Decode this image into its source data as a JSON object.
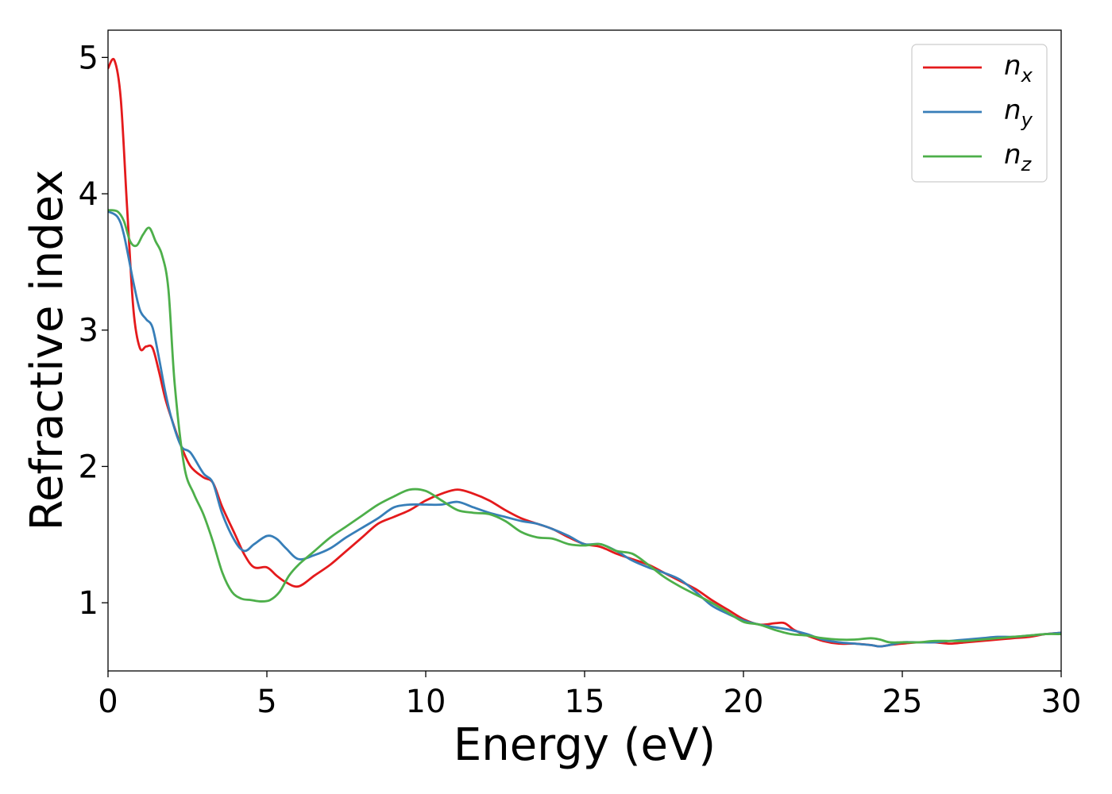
{
  "chart_data": {
    "type": "line",
    "title": "",
    "xlabel": "Energy (eV)",
    "ylabel": "Refractive index",
    "xlim": [
      0,
      30
    ],
    "ylim": [
      0.5,
      5.2
    ],
    "xticks": [
      0,
      5,
      10,
      15,
      20,
      25,
      30
    ],
    "yticks": [
      1,
      2,
      3,
      4,
      5
    ],
    "grid": false,
    "legend_position": "top-right",
    "series": [
      {
        "name": "n_x",
        "legend_base": "n",
        "legend_sub": "x",
        "color": "#e41a1c",
        "x": [
          0,
          0.2,
          0.4,
          0.6,
          0.8,
          1.0,
          1.2,
          1.4,
          1.6,
          1.8,
          2.0,
          2.3,
          2.6,
          3.0,
          3.3,
          3.6,
          4.0,
          4.3,
          4.6,
          5.0,
          5.3,
          5.6,
          6.0,
          6.5,
          7.0,
          7.5,
          8.0,
          8.5,
          9.0,
          9.5,
          10.0,
          10.5,
          11.0,
          11.5,
          12.0,
          12.5,
          13.0,
          13.5,
          14.0,
          14.5,
          15.0,
          15.5,
          16.0,
          16.5,
          17.0,
          17.5,
          18.0,
          18.5,
          19.0,
          19.5,
          20.0,
          20.5,
          21.0,
          21.3,
          21.6,
          22.0,
          22.5,
          23.0,
          23.5,
          24.0,
          24.3,
          24.6,
          25.0,
          25.5,
          26.0,
          26.5,
          27.0,
          27.5,
          28.0,
          28.5,
          29.0,
          29.5,
          30.0
        ],
        "y": [
          4.92,
          4.98,
          4.7,
          3.9,
          3.15,
          2.87,
          2.88,
          2.87,
          2.7,
          2.5,
          2.35,
          2.15,
          2.0,
          1.92,
          1.88,
          1.7,
          1.5,
          1.35,
          1.26,
          1.26,
          1.2,
          1.15,
          1.12,
          1.2,
          1.28,
          1.38,
          1.48,
          1.58,
          1.63,
          1.68,
          1.75,
          1.8,
          1.83,
          1.8,
          1.75,
          1.68,
          1.62,
          1.58,
          1.54,
          1.48,
          1.43,
          1.41,
          1.36,
          1.32,
          1.28,
          1.22,
          1.16,
          1.1,
          1.02,
          0.95,
          0.88,
          0.84,
          0.85,
          0.85,
          0.8,
          0.76,
          0.72,
          0.7,
          0.7,
          0.69,
          0.68,
          0.69,
          0.7,
          0.71,
          0.71,
          0.7,
          0.71,
          0.72,
          0.73,
          0.74,
          0.75,
          0.77,
          0.78
        ]
      },
      {
        "name": "n_y",
        "legend_base": "n",
        "legend_sub": "y",
        "color": "#377eb8",
        "x": [
          0,
          0.3,
          0.5,
          0.8,
          1.0,
          1.2,
          1.4,
          1.6,
          1.8,
          2.0,
          2.3,
          2.6,
          3.0,
          3.3,
          3.6,
          4.0,
          4.3,
          4.6,
          5.0,
          5.3,
          5.6,
          6.0,
          6.5,
          7.0,
          7.5,
          8.0,
          8.5,
          9.0,
          9.5,
          10.0,
          10.5,
          11.0,
          11.5,
          12.0,
          12.5,
          13.0,
          13.5,
          14.0,
          14.5,
          15.0,
          15.5,
          16.0,
          16.5,
          17.0,
          17.5,
          18.0,
          18.5,
          19.0,
          19.5,
          20.0,
          20.5,
          21.0,
          21.5,
          22.0,
          22.5,
          23.0,
          23.5,
          24.0,
          24.3,
          24.6,
          25.0,
          25.5,
          26.0,
          26.5,
          27.0,
          27.5,
          28.0,
          28.5,
          29.0,
          29.5,
          30.0
        ],
        "y": [
          3.87,
          3.83,
          3.7,
          3.35,
          3.15,
          3.08,
          3.02,
          2.8,
          2.55,
          2.35,
          2.15,
          2.1,
          1.95,
          1.88,
          1.65,
          1.45,
          1.38,
          1.43,
          1.49,
          1.47,
          1.4,
          1.32,
          1.35,
          1.4,
          1.48,
          1.55,
          1.62,
          1.7,
          1.72,
          1.72,
          1.72,
          1.74,
          1.7,
          1.66,
          1.63,
          1.6,
          1.58,
          1.54,
          1.49,
          1.43,
          1.43,
          1.38,
          1.31,
          1.26,
          1.22,
          1.17,
          1.08,
          0.98,
          0.92,
          0.87,
          0.84,
          0.82,
          0.8,
          0.77,
          0.73,
          0.71,
          0.7,
          0.69,
          0.68,
          0.69,
          0.71,
          0.71,
          0.71,
          0.72,
          0.73,
          0.74,
          0.75,
          0.75,
          0.76,
          0.77,
          0.78
        ]
      },
      {
        "name": "n_z",
        "legend_base": "n",
        "legend_sub": "z",
        "color": "#4daf4a",
        "x": [
          0,
          0.3,
          0.5,
          0.7,
          0.9,
          1.1,
          1.3,
          1.5,
          1.7,
          1.9,
          2.1,
          2.4,
          2.7,
          3.0,
          3.3,
          3.6,
          3.9,
          4.2,
          4.5,
          4.8,
          5.1,
          5.4,
          5.7,
          6.0,
          6.5,
          7.0,
          7.5,
          8.0,
          8.5,
          9.0,
          9.5,
          10.0,
          10.5,
          11.0,
          11.5,
          12.0,
          12.5,
          13.0,
          13.5,
          14.0,
          14.5,
          15.0,
          15.5,
          16.0,
          16.5,
          17.0,
          17.5,
          18.0,
          18.5,
          19.0,
          19.5,
          20.0,
          20.5,
          21.0,
          21.5,
          22.0,
          22.5,
          23.0,
          23.5,
          24.0,
          24.3,
          24.6,
          25.0,
          25.5,
          26.0,
          26.5,
          27.0,
          27.5,
          28.0,
          28.5,
          29.0,
          29.5,
          30.0
        ],
        "y": [
          3.88,
          3.87,
          3.8,
          3.65,
          3.62,
          3.7,
          3.75,
          3.65,
          3.55,
          3.3,
          2.6,
          2.0,
          1.8,
          1.65,
          1.45,
          1.22,
          1.08,
          1.03,
          1.02,
          1.01,
          1.02,
          1.08,
          1.2,
          1.28,
          1.38,
          1.48,
          1.56,
          1.64,
          1.72,
          1.78,
          1.83,
          1.82,
          1.75,
          1.68,
          1.66,
          1.65,
          1.6,
          1.52,
          1.48,
          1.47,
          1.43,
          1.42,
          1.43,
          1.38,
          1.36,
          1.28,
          1.19,
          1.12,
          1.06,
          1.0,
          0.93,
          0.86,
          0.84,
          0.8,
          0.77,
          0.76,
          0.74,
          0.73,
          0.73,
          0.74,
          0.73,
          0.71,
          0.71,
          0.71,
          0.72,
          0.72,
          0.72,
          0.73,
          0.74,
          0.75,
          0.76,
          0.77,
          0.77
        ]
      }
    ]
  }
}
